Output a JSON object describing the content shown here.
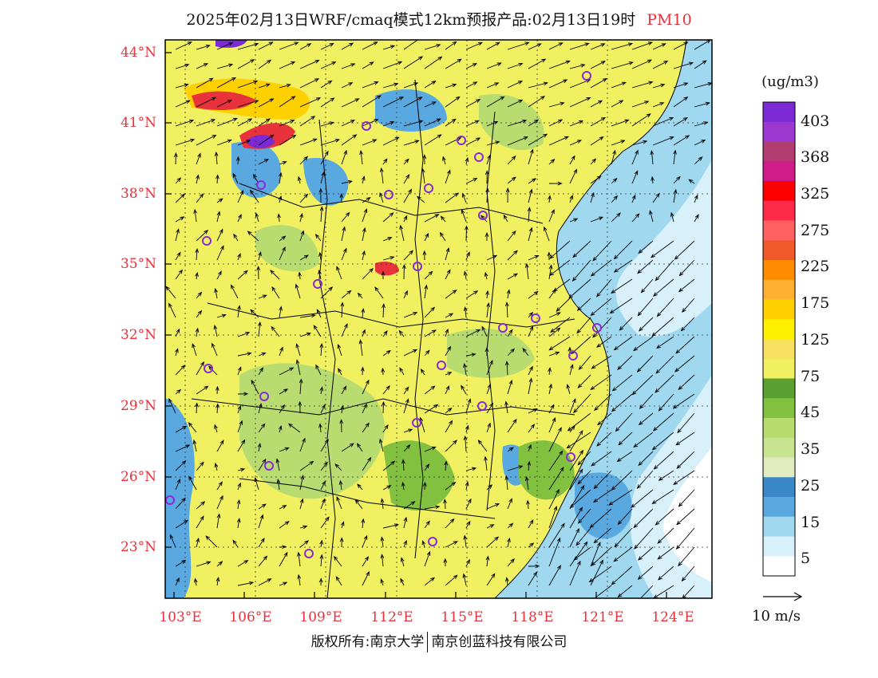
{
  "title": {
    "main": "2025年02月13日WRF/cmaq模式12km预报产品:02月13日19时",
    "pollutant": "PM10"
  },
  "axes": {
    "lat_labels": [
      "44°N",
      "41°N",
      "38°N",
      "35°N",
      "32°N",
      "29°N",
      "26°N",
      "23°N"
    ],
    "lon_labels": [
      "103°E",
      "106°E",
      "109°E",
      "112°E",
      "115°E",
      "118°E",
      "121°E",
      "124°E"
    ]
  },
  "colorbar": {
    "unit": "(ug/m3)",
    "labels": [
      "403",
      "368",
      "325",
      "275",
      "225",
      "175",
      "125",
      "75",
      "45",
      "35",
      "25",
      "15",
      "5"
    ],
    "colors": [
      "#7b2ad6",
      "#9b38d0",
      "#b13c70",
      "#cf1c88",
      "#ff0000",
      "#ff2a4a",
      "#ff6060",
      "#f05a2a",
      "#ff8c00",
      "#ffb030",
      "#ffd000",
      "#fff000",
      "#f8e060",
      "#f0f060",
      "#5aa030",
      "#82c040",
      "#b8dc70",
      "#c8e490",
      "#e0ecc0",
      "#3a88c8",
      "#5aa8e0",
      "#a0d8f0",
      "#d8f0fa",
      "#ffffff"
    ]
  },
  "vector_scale": {
    "label": "10 m/s"
  },
  "footer": {
    "left": "版权所有:南京大学",
    "right": "南京创蓝科技有限公司"
  },
  "map": {
    "colors": {
      "land_yellow": "#f0f060",
      "land_green": "#b8dc70",
      "ocean_light": "#d8f0fa",
      "ocean_mid": "#a0d8f0",
      "blue_low": "#5aa8e0",
      "high_red": "#e8323c",
      "purple": "#7b2ad6",
      "city_marker": "#8a2ad6"
    }
  }
}
